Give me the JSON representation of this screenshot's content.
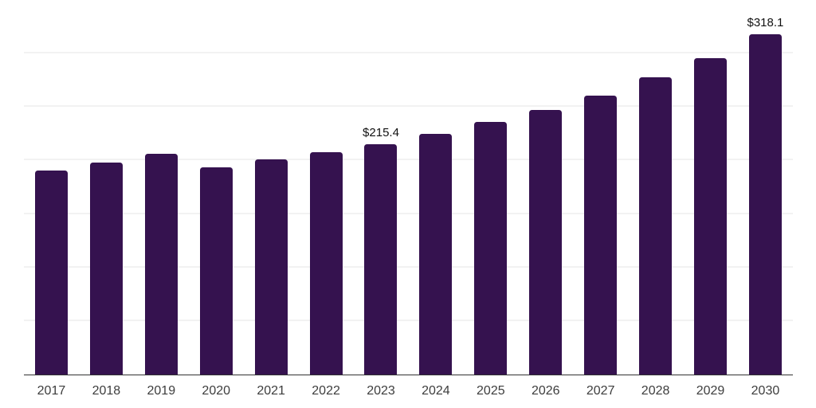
{
  "chart_data": {
    "type": "bar",
    "title": "",
    "xlabel": "",
    "ylabel": "",
    "categories": [
      "2017",
      "2018",
      "2019",
      "2020",
      "2021",
      "2022",
      "2023",
      "2024",
      "2025",
      "2026",
      "2027",
      "2028",
      "2029",
      "2030"
    ],
    "values": [
      191,
      198,
      206,
      194,
      201,
      208,
      215.4,
      225,
      236,
      247,
      261,
      278,
      296,
      318.1
    ],
    "data_labels": [
      "",
      "",
      "",
      "",
      "",
      "",
      "$215.4",
      "",
      "",
      "",
      "",
      "",
      "",
      "$318.1"
    ],
    "ylim": [
      0,
      350
    ],
    "gridline_step": 50,
    "grid": "horizontal",
    "legend_position": "none",
    "y_axis_labels_visible": false,
    "colors": {
      "bar": "#35124F",
      "background": "#FFFFFF",
      "gridline": "#F2F2F2",
      "axis_line": "#333333",
      "tick_label": "#3D3D3D",
      "data_label": "#111111"
    }
  }
}
